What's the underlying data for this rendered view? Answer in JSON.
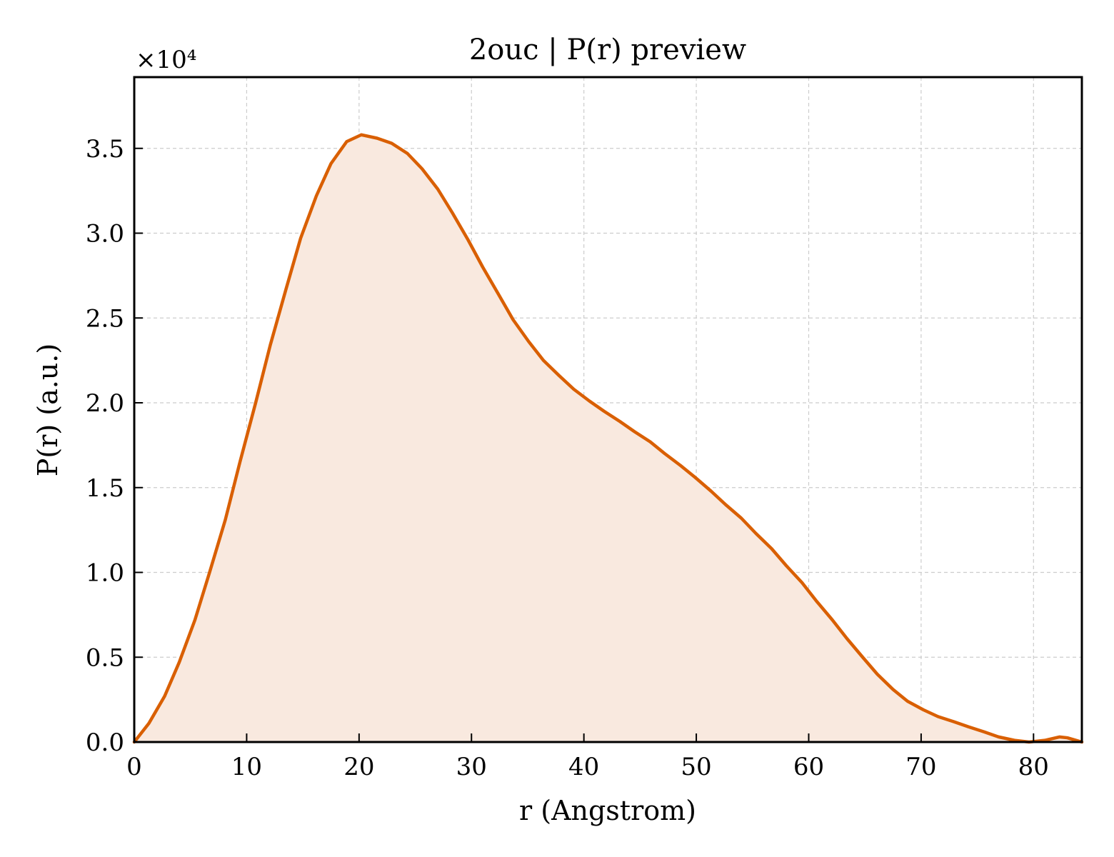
{
  "chart_data": {
    "type": "area",
    "title": "2ouc | P(r) preview",
    "xlabel": "r (Angstrom)",
    "ylabel": "P(r) (a.u.)",
    "y_offset_label": "×10⁴",
    "y_scale": 10000,
    "xlim": [
      0,
      84.3
    ],
    "ylim": [
      0,
      39200
    ],
    "x_ticks": [
      0,
      10,
      20,
      30,
      40,
      50,
      60,
      70,
      80
    ],
    "x_tick_labels": [
      "0",
      "10",
      "20",
      "30",
      "40",
      "50",
      "60",
      "70",
      "80"
    ],
    "y_ticks": [
      0,
      5000,
      10000,
      15000,
      20000,
      25000,
      30000,
      35000
    ],
    "y_tick_labels": [
      "0.0",
      "0.5",
      "1.0",
      "1.5",
      "2.0",
      "2.5",
      "3.0",
      "3.5"
    ],
    "grid": true,
    "line_color": "#d95f02",
    "fill_color": "#f9e9df",
    "series": [
      {
        "x": [
          0,
          1.3,
          2.7,
          4.0,
          5.4,
          6.7,
          8.1,
          9.4,
          10.8,
          12.1,
          13.5,
          14.8,
          16.2,
          17.5,
          18.9,
          20.2,
          21.6,
          22.9,
          24.3,
          25.6,
          27.0,
          28.3,
          29.7,
          31.0,
          32.4,
          33.7,
          35.1,
          36.4,
          37.8,
          39.1,
          40.5,
          41.8,
          43.2,
          44.5,
          45.9,
          47.2,
          48.6,
          49.9,
          51.3,
          52.6,
          54.0,
          55.3,
          56.7,
          58.0,
          59.4,
          60.7,
          62.1,
          63.4,
          64.8,
          66.1,
          67.5,
          68.8,
          70.2,
          71.5,
          72.9,
          74.2,
          75.6,
          76.9,
          78.3,
          79.6,
          81.0,
          82.3,
          83.0,
          84.3
        ],
        "y": [
          0,
          1100,
          2700,
          4700,
          7200,
          10000,
          13100,
          16500,
          20000,
          23400,
          26700,
          29700,
          32200,
          34100,
          35400,
          35800,
          35600,
          35300,
          34700,
          33800,
          32600,
          31200,
          29600,
          28000,
          26400,
          24900,
          23600,
          22500,
          21600,
          20800,
          20100,
          19500,
          18900,
          18300,
          17700,
          17000,
          16300,
          15600,
          14800,
          14000,
          13200,
          12300,
          11400,
          10400,
          9400,
          8300,
          7200,
          6100,
          5000,
          4000,
          3100,
          2400,
          1900,
          1500,
          1200,
          900,
          600,
          300,
          100,
          0,
          100,
          300,
          250,
          0
        ]
      }
    ]
  }
}
